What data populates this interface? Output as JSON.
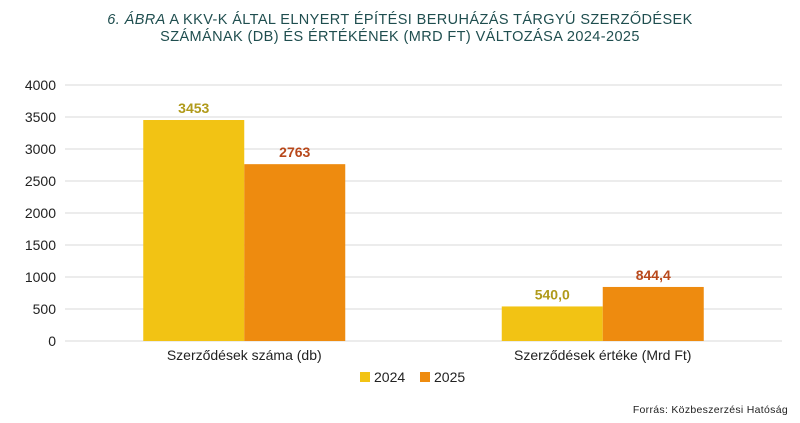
{
  "title": {
    "figure_label": "6. ÁBRA",
    "line1_rest": " A KKV-K ÁLTAL ELNYERT ÉPÍTÉSI BERUHÁZÁS TÁRGYÚ SZERZŐDÉSEK",
    "line2": "SZÁMÁNAK (DB)  ÉS ÉRTÉKÉNEK (MRD FT)  VÁLTOZÁSA  2024-2025"
  },
  "source": "Forrás: Közbeszerzési  Hatóság",
  "colors": {
    "series_2024": "#f2c314",
    "series_2025": "#ee8b0f",
    "label_2024": "#b09a1a",
    "label_2025": "#b8481b",
    "grid": "#d9d9d9",
    "axis_text": "#222222"
  },
  "chart_data": {
    "type": "bar",
    "categories": [
      "Szerződések száma (db)",
      "Szerződések értéke (Mrd Ft)"
    ],
    "series": [
      {
        "name": "2024",
        "values": [
          3453,
          540.0
        ],
        "labels": [
          "3453",
          "540,0"
        ]
      },
      {
        "name": "2025",
        "values": [
          2763,
          844.4
        ],
        "labels": [
          "2763",
          "844,4"
        ]
      }
    ],
    "ylim": [
      0,
      4000
    ],
    "yticks": [
      0,
      500,
      1000,
      1500,
      2000,
      2500,
      3000,
      3500,
      4000
    ],
    "grid": true,
    "legend_position": "bottom"
  }
}
